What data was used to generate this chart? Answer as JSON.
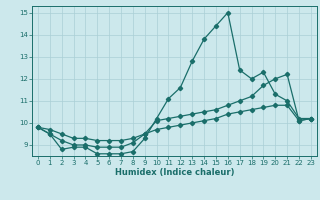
{
  "x": [
    0,
    1,
    2,
    3,
    4,
    5,
    6,
    7,
    8,
    9,
    10,
    11,
    12,
    13,
    14,
    15,
    16,
    17,
    18,
    19,
    20,
    21,
    22,
    23
  ],
  "line1": [
    9.8,
    9.5,
    8.8,
    8.9,
    8.9,
    8.6,
    8.6,
    8.6,
    8.7,
    9.3,
    10.2,
    11.1,
    11.6,
    12.8,
    13.8,
    14.4,
    15.0,
    12.4,
    12.0,
    12.3,
    11.3,
    11.0,
    10.2,
    10.2
  ],
  "line2": [
    9.8,
    9.5,
    9.2,
    9.0,
    9.0,
    8.9,
    8.9,
    8.9,
    9.1,
    9.5,
    10.1,
    10.2,
    10.3,
    10.4,
    10.5,
    10.6,
    10.8,
    11.0,
    11.2,
    11.7,
    12.0,
    12.2,
    10.1,
    10.2
  ],
  "line3": [
    9.8,
    9.7,
    9.5,
    9.3,
    9.3,
    9.2,
    9.2,
    9.2,
    9.3,
    9.5,
    9.7,
    9.8,
    9.9,
    10.0,
    10.1,
    10.2,
    10.4,
    10.5,
    10.6,
    10.7,
    10.8,
    10.8,
    10.1,
    10.2
  ],
  "bg_color": "#cce8ec",
  "line_color": "#1a6e6a",
  "grid_color": "#aacfd6",
  "xlabel": "Humidex (Indice chaleur)",
  "ylim": [
    8.5,
    15.3
  ],
  "xlim": [
    -0.5,
    23.5
  ],
  "yticks": [
    9,
    10,
    11,
    12,
    13,
    14,
    15
  ],
  "xticks": [
    0,
    1,
    2,
    3,
    4,
    5,
    6,
    7,
    8,
    9,
    10,
    11,
    12,
    13,
    14,
    15,
    16,
    17,
    18,
    19,
    20,
    21,
    22,
    23
  ],
  "tick_color": "#1a6e6a",
  "axis_color": "#1a6e6a",
  "xlabel_fontsize": 6.0,
  "tick_fontsize": 5.0
}
